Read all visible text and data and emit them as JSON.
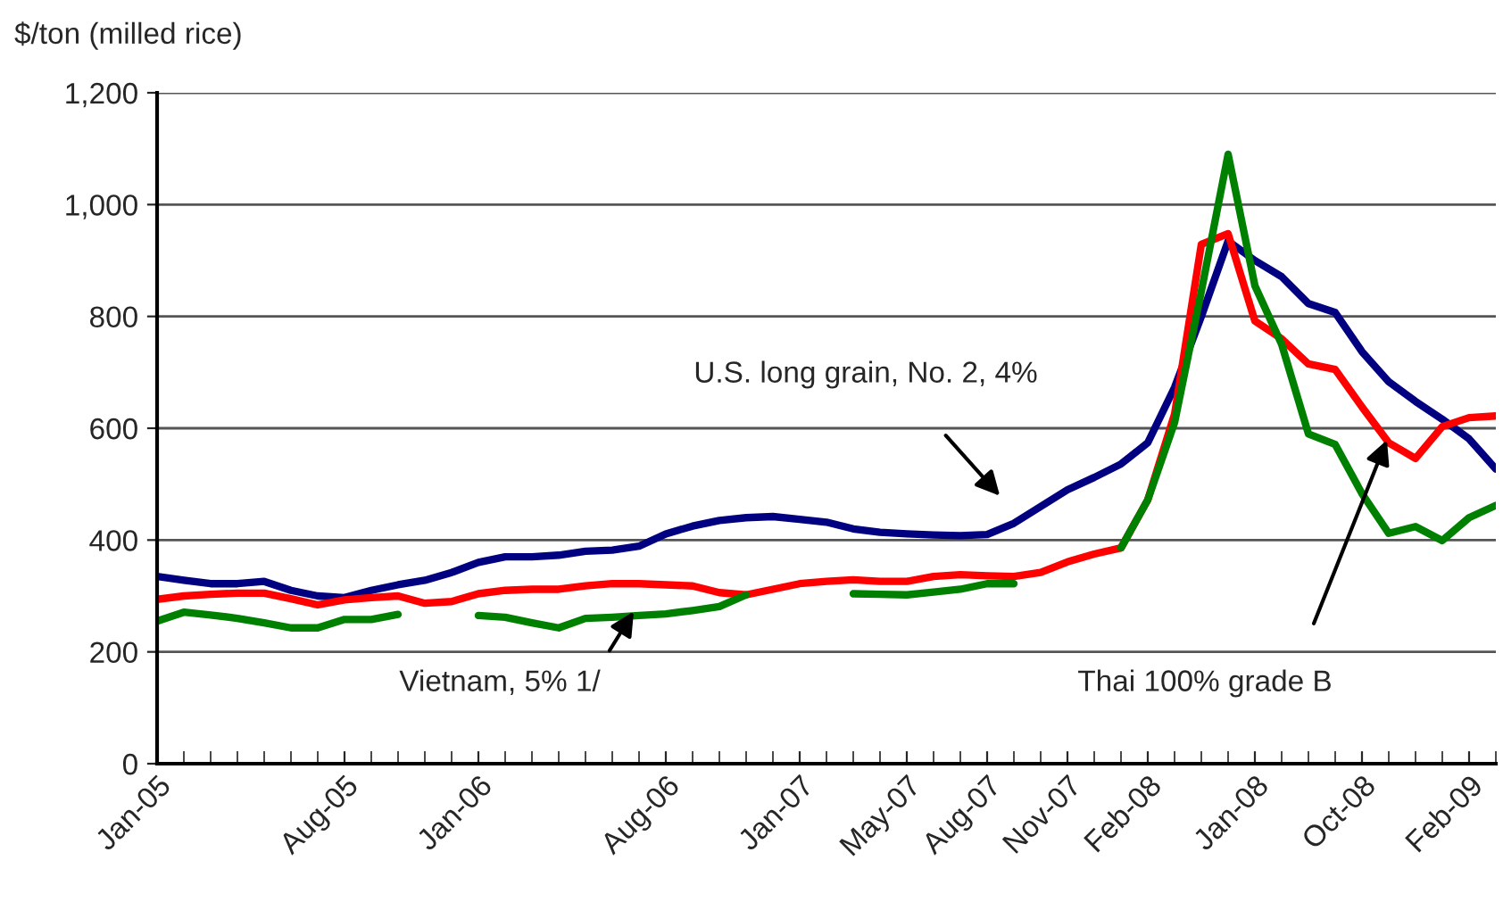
{
  "chart_data": {
    "type": "line",
    "ylabel": "$/ton (milled rice)",
    "categories": [
      "Jan-05",
      null,
      null,
      null,
      null,
      null,
      null,
      "Aug-05",
      null,
      null,
      null,
      null,
      "Jan-06",
      null,
      null,
      null,
      null,
      null,
      null,
      "Aug-06",
      null,
      null,
      null,
      null,
      "Jan-07",
      null,
      null,
      null,
      "May-07",
      null,
      null,
      "Aug-07",
      null,
      null,
      "Nov-07",
      null,
      null,
      "Feb-08",
      null,
      null,
      null,
      "Jan-08",
      null,
      null,
      null,
      "Oct-08",
      null,
      null,
      null,
      "Feb-09",
      null
    ],
    "series": [
      {
        "color": "#000080",
        "values": [
          335,
          328,
          322,
          322,
          326,
          310,
          300,
          297,
          310,
          320,
          328,
          342,
          360,
          370,
          370,
          373,
          380,
          382,
          389,
          411,
          425,
          435,
          440,
          442,
          437,
          432,
          420,
          414,
          411,
          409,
          408,
          410,
          430,
          460,
          490,
          512,
          536,
          574,
          673,
          800,
          935,
          900,
          871,
          823,
          807,
          737,
          683,
          648,
          616,
          581,
          527
        ]
      },
      {
        "color": "#ff0000",
        "values": [
          294,
          300,
          303,
          305,
          305,
          295,
          284,
          293,
          297,
          300,
          287,
          290,
          304,
          310,
          312,
          312,
          318,
          322,
          322,
          320,
          318,
          306,
          302,
          312,
          322,
          326,
          329,
          326,
          326,
          335,
          338,
          336,
          335,
          342,
          361,
          375,
          386,
          472,
          625,
          929,
          948,
          792,
          760,
          715,
          705,
          638,
          574,
          546,
          603,
          619,
          622
        ]
      },
      {
        "color": "#008000",
        "values": [
          255,
          271,
          266,
          260,
          252,
          243,
          243,
          258,
          258,
          267,
          null,
          null,
          265,
          262,
          252,
          243,
          260,
          262,
          265,
          268,
          274,
          281,
          302,
          null,
          null,
          null,
          304,
          303,
          302,
          307,
          312,
          322,
          322,
          null,
          null,
          null,
          386,
          472,
          610,
          845,
          1090,
          855,
          750,
          590,
          571,
          483,
          412,
          424,
          399,
          440,
          462
        ]
      }
    ],
    "ylim": [
      0,
      1200
    ],
    "yticks": [
      0,
      200,
      400,
      600,
      800,
      {
        "value": 1000,
        "label": "1,000"
      },
      {
        "value": 1200,
        "label": "1,200"
      }
    ],
    "grid": "y",
    "annotations": [
      "U.S. long grain, No. 2, 4%",
      {
        "text": "Vietnam, 5% 1/",
        "y": 280
      },
      "Thai 100% grade B"
    ]
  }
}
